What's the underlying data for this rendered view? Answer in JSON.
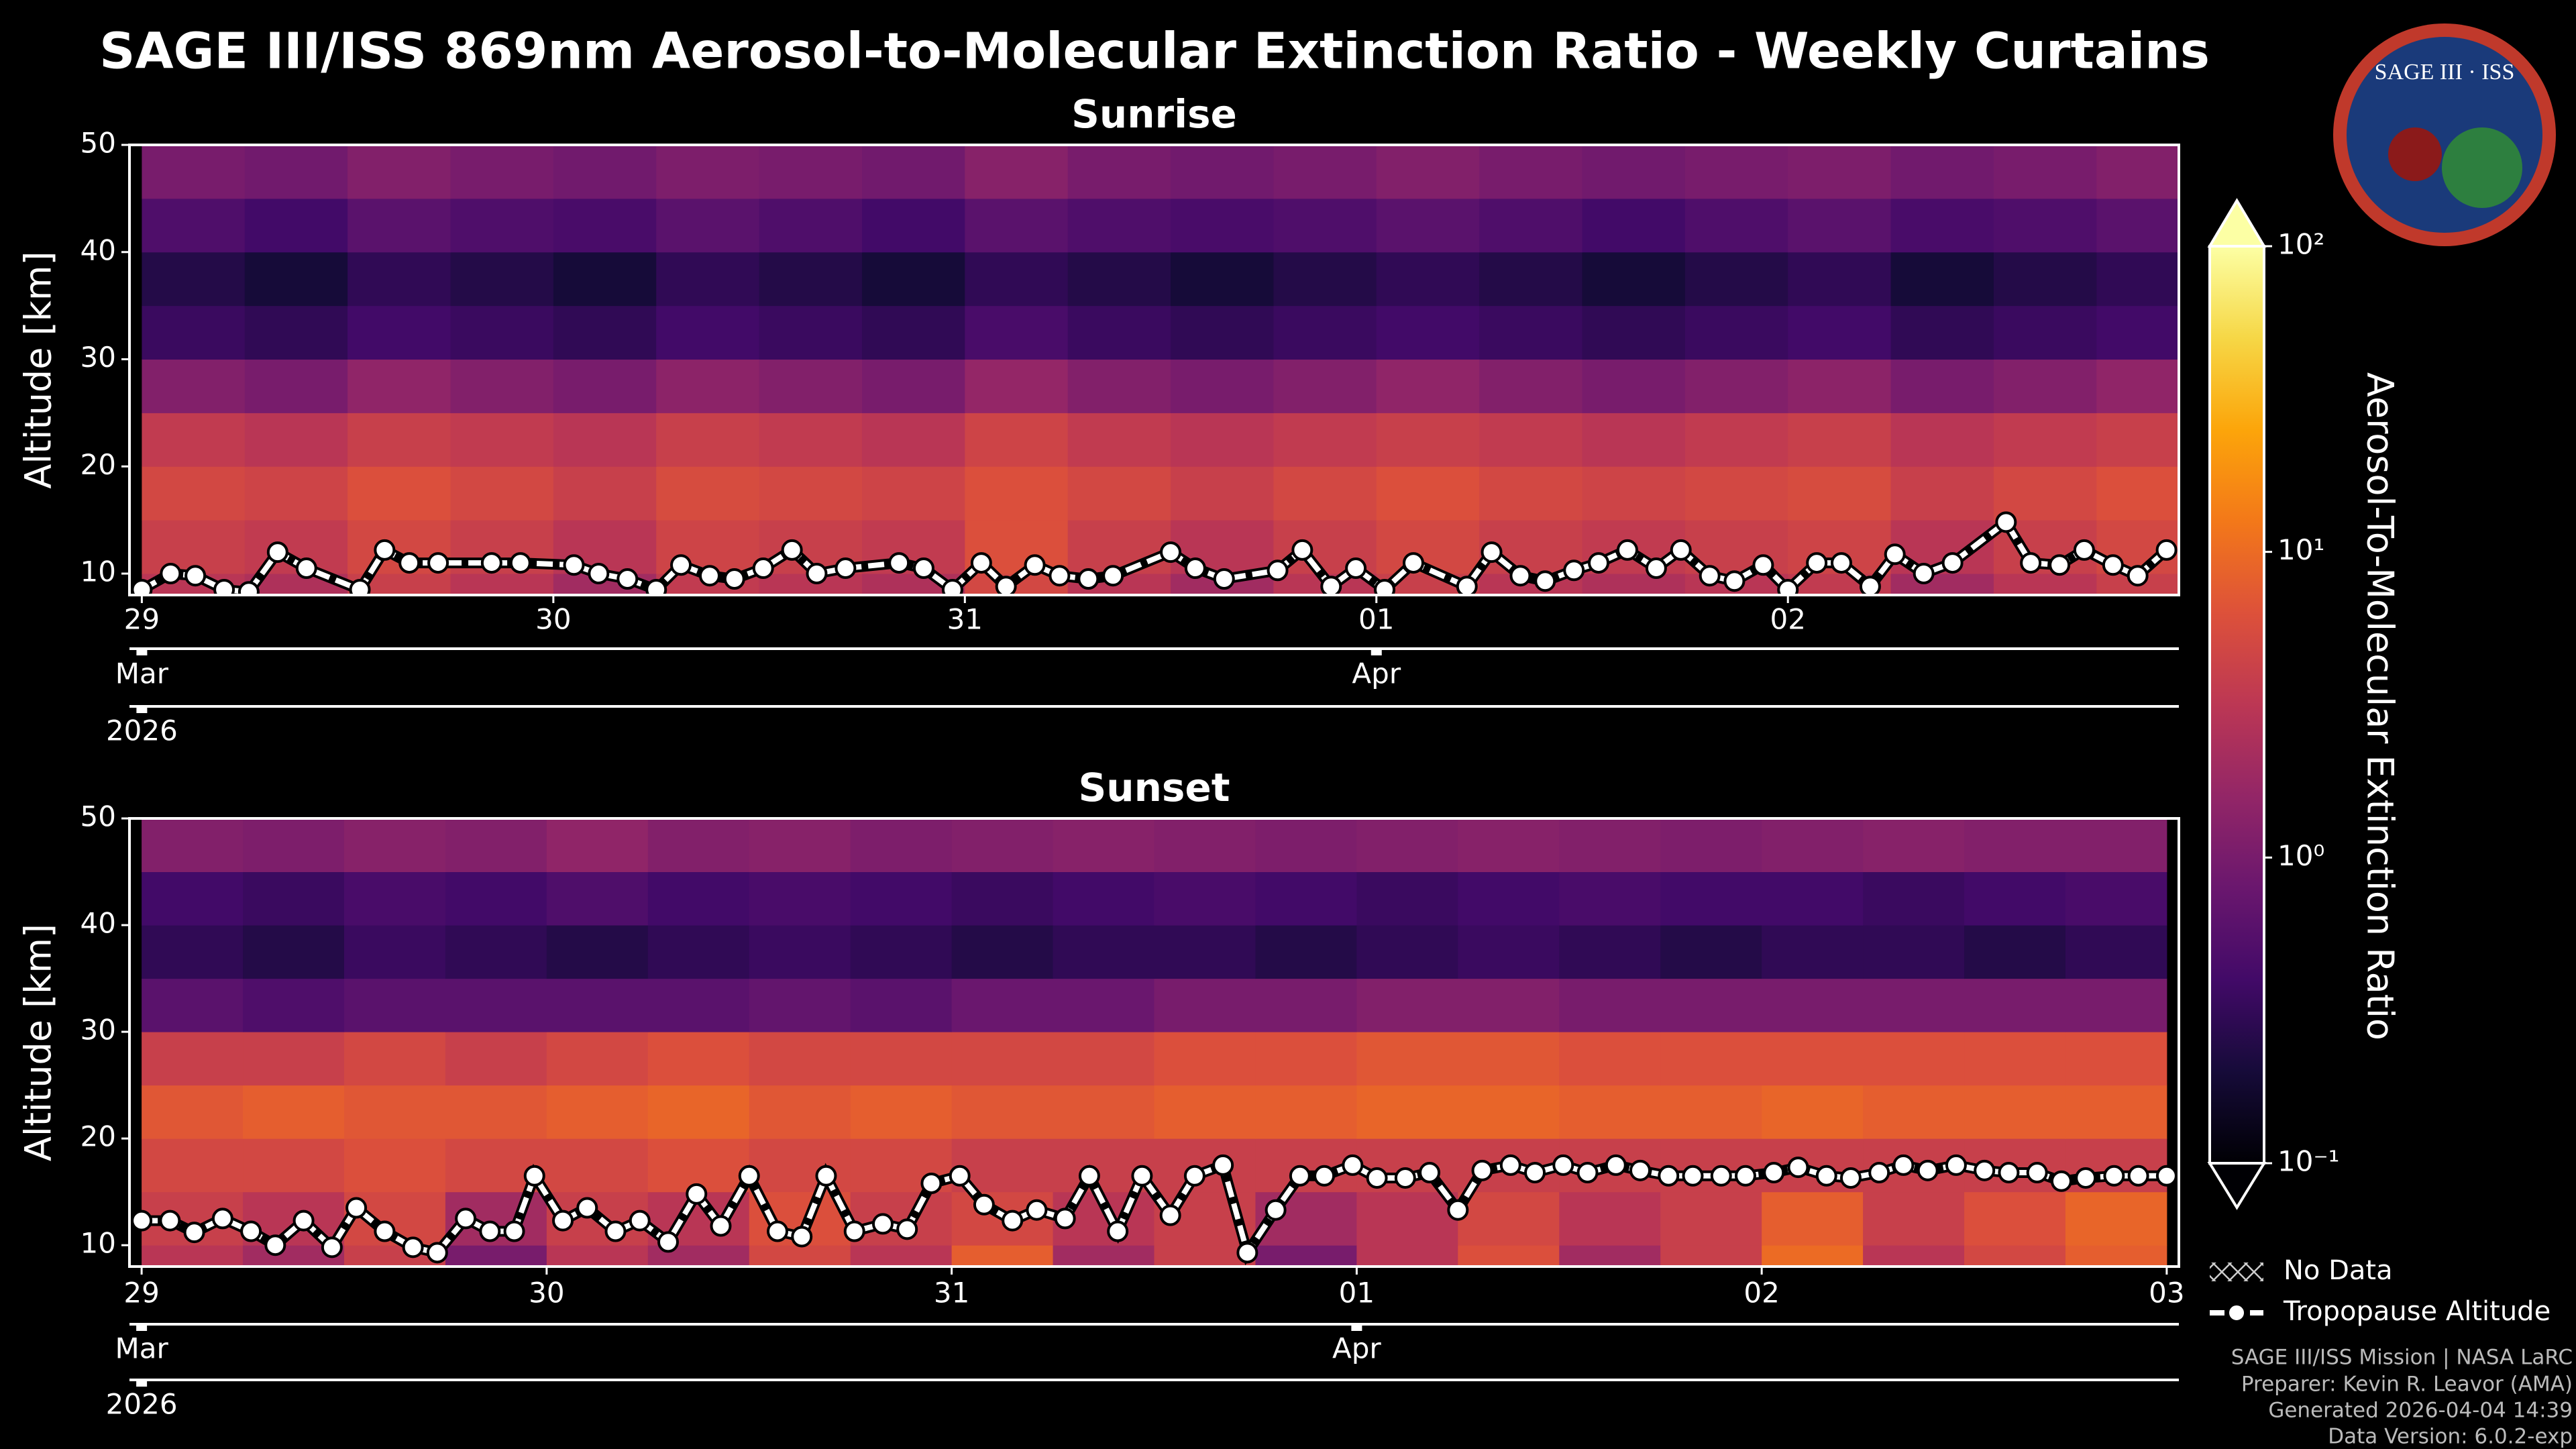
{
  "title": "SAGE III/ISS 869nm Aerosol-to-Molecular Extinction Ratio - Weekly Curtains",
  "logo": {
    "text": "SAGE III · ISS"
  },
  "colorbar": {
    "label": "Aerosol-To-Molecular Extinction Ratio",
    "colormap": "inferno",
    "log": true,
    "clim": [
      0.1,
      100
    ],
    "ticks": [
      {
        "value": 0.1,
        "label": "10⁻¹"
      },
      {
        "value": 1,
        "label": "10⁰"
      },
      {
        "value": 10,
        "label": "10¹"
      },
      {
        "value": 100,
        "label": "10²"
      }
    ]
  },
  "legend": [
    "No Data",
    "Tropopause Altitude"
  ],
  "footer": [
    "SAGE III/ISS Mission | NASA LaRC",
    "Preparer: Kevin R. Leavor (AMA)",
    "Generated 2026-04-04 14:39",
    "Data Version: 6.0.2-exp"
  ],
  "chart_data": [
    {
      "type": "heatmap",
      "title": "Sunrise",
      "ylabel": "Altitude [km]",
      "xlim": [
        -0.03,
        4.95
      ],
      "ylim": [
        8,
        50
      ],
      "yticks": [
        10,
        20,
        30,
        40,
        50
      ],
      "xticks": [
        {
          "value": 0,
          "label": "29"
        },
        {
          "value": 1,
          "label": "30"
        },
        {
          "value": 2,
          "label": "31"
        },
        {
          "value": 3,
          "label": "01"
        },
        {
          "value": 4,
          "label": "02"
        }
      ],
      "month_ticks": [
        {
          "value": 0,
          "label": "Mar"
        },
        {
          "value": 3,
          "label": "Apr"
        }
      ],
      "year_ticks": [
        {
          "value": 0,
          "label": "2026"
        }
      ],
      "x_edges": [
        0,
        0.25,
        0.5,
        0.75,
        1,
        1.25,
        1.5,
        1.75,
        2,
        2.25,
        2.5,
        2.75,
        3,
        3.25,
        3.5,
        3.75,
        4,
        4.25,
        4.5,
        4.75,
        5
      ],
      "y_edges": [
        8,
        10,
        15,
        20,
        25,
        30,
        35,
        40,
        45,
        50
      ],
      "z": [
        [
          3,
          2.5,
          4,
          3,
          2,
          3.5,
          3,
          2.5,
          5,
          3,
          2,
          3,
          4,
          3,
          2.5,
          3,
          3.5,
          2,
          3,
          4
        ],
        [
          4,
          3.5,
          5,
          4,
          3,
          4.5,
          4,
          3.5,
          6,
          4,
          3,
          4,
          5,
          4,
          3.5,
          4,
          4.5,
          3,
          4,
          5
        ],
        [
          5,
          4.5,
          6,
          5,
          4,
          5.5,
          5,
          4.5,
          6,
          5,
          4,
          5,
          6,
          5,
          4.5,
          5,
          5.5,
          4,
          5,
          6
        ],
        [
          3.5,
          3,
          4,
          3.5,
          3,
          4,
          3.5,
          3,
          4.5,
          3.5,
          3,
          3.5,
          4,
          3.5,
          3,
          3.5,
          4,
          3,
          3.5,
          4
        ],
        [
          1.2,
          1,
          1.5,
          1.2,
          1,
          1.4,
          1.2,
          1,
          1.6,
          1.2,
          1,
          1.2,
          1.5,
          1.2,
          1,
          1.2,
          1.4,
          1,
          1.2,
          1.5
        ],
        [
          0.35,
          0.3,
          0.4,
          0.35,
          0.3,
          0.4,
          0.35,
          0.3,
          0.45,
          0.35,
          0.3,
          0.35,
          0.4,
          0.35,
          0.3,
          0.35,
          0.4,
          0.3,
          0.35,
          0.4
        ],
        [
          0.25,
          0.2,
          0.3,
          0.25,
          0.2,
          0.3,
          0.25,
          0.2,
          0.3,
          0.25,
          0.2,
          0.25,
          0.3,
          0.25,
          0.2,
          0.25,
          0.3,
          0.2,
          0.25,
          0.3
        ],
        [
          0.5,
          0.4,
          0.6,
          0.5,
          0.45,
          0.6,
          0.5,
          0.4,
          0.6,
          0.5,
          0.45,
          0.5,
          0.6,
          0.5,
          0.4,
          0.5,
          0.6,
          0.45,
          0.5,
          0.6
        ],
        [
          1,
          0.9,
          1.2,
          1,
          0.9,
          1.1,
          1,
          0.9,
          1.3,
          1,
          0.9,
          1,
          1.2,
          1,
          0.9,
          1,
          1.1,
          0.9,
          1,
          1.2
        ]
      ],
      "series": [
        {
          "color": "#ffffff",
          "x": [
            0,
            0.07,
            0.13,
            0.2,
            0.26,
            0.33,
            0.4,
            0.53,
            0.59,
            0.65,
            0.72,
            0.85,
            0.92,
            1.05,
            1.11,
            1.18,
            1.25,
            1.31,
            1.38,
            1.44,
            1.51,
            1.58,
            1.64,
            1.71,
            1.84,
            1.9,
            1.97,
            2.04,
            2.1,
            2.17,
            2.23,
            2.3,
            2.36,
            2.5,
            2.56,
            2.63,
            2.76,
            2.82,
            2.89,
            2.95,
            3.02,
            3.09,
            3.22,
            3.28,
            3.35,
            3.41,
            3.48,
            3.54,
            3.61,
            3.68,
            3.74,
            3.81,
            3.87,
            3.94,
            4,
            4.07,
            4.13,
            4.2,
            4.26,
            4.33,
            4.4,
            4.53,
            4.59,
            4.66,
            4.72,
            4.79,
            4.85,
            4.92
          ],
          "values": [
            8.5,
            10,
            9.8,
            8.5,
            8.3,
            12,
            10.5,
            8.5,
            12.2,
            11,
            11,
            11,
            11,
            10.8,
            10,
            9.5,
            8.5,
            10.8,
            9.8,
            9.5,
            10.5,
            12.2,
            10,
            10.5,
            11,
            10.5,
            8.5,
            11,
            8.8,
            10.8,
            9.8,
            9.5,
            9.8,
            12,
            10.5,
            9.5,
            10.3,
            12.2,
            8.8,
            10.5,
            8.5,
            11,
            8.8,
            12,
            9.8,
            9.3,
            10.3,
            11,
            12.2,
            10.5,
            12.2,
            9.8,
            9.3,
            10.8,
            8.5,
            11,
            11,
            8.8,
            11.8,
            10,
            11,
            14.8,
            11,
            10.8,
            12.2,
            10.8,
            9.8,
            12.2
          ]
        }
      ]
    },
    {
      "type": "heatmap",
      "title": "Sunset",
      "ylabel": "Altitude [km]",
      "xlim": [
        -0.03,
        5.03
      ],
      "ylim": [
        8,
        50
      ],
      "yticks": [
        10,
        20,
        30,
        40,
        50
      ],
      "xticks": [
        {
          "value": 0,
          "label": "29"
        },
        {
          "value": 1,
          "label": "30"
        },
        {
          "value": 2,
          "label": "31"
        },
        {
          "value": 3,
          "label": "01"
        },
        {
          "value": 4,
          "label": "02"
        },
        {
          "value": 5,
          "label": "03"
        }
      ],
      "month_ticks": [
        {
          "value": 0,
          "label": "Mar"
        },
        {
          "value": 3,
          "label": "Apr"
        }
      ],
      "year_ticks": [
        {
          "value": 0,
          "label": "2026"
        }
      ],
      "x_edges": [
        0,
        0.25,
        0.5,
        0.75,
        1,
        1.25,
        1.5,
        1.75,
        2,
        2.25,
        2.5,
        2.75,
        3,
        3.25,
        3.5,
        3.75,
        4,
        4.25,
        4.5,
        4.75,
        5
      ],
      "y_edges": [
        8,
        10,
        15,
        20,
        25,
        30,
        35,
        40,
        45,
        50
      ],
      "z": [
        [
          3,
          2,
          4,
          1,
          3,
          2,
          5,
          3,
          8,
          2,
          4,
          1,
          3,
          6,
          2,
          4,
          10,
          3,
          5,
          8
        ],
        [
          4,
          3,
          5,
          2,
          4,
          3,
          6,
          4,
          5,
          3,
          4,
          2,
          3,
          5,
          3,
          4,
          8,
          4,
          6,
          9
        ],
        [
          5,
          5,
          6,
          5,
          5,
          6,
          5,
          5,
          4,
          4,
          4,
          4,
          4,
          4,
          4,
          4,
          4,
          4,
          4,
          4
        ],
        [
          7,
          8,
          7,
          7,
          8,
          9,
          7,
          8,
          7,
          7,
          8,
          8,
          9,
          9,
          8,
          8,
          9,
          8,
          8,
          8
        ],
        [
          4,
          4,
          5,
          4,
          5,
          6,
          5,
          5,
          5,
          5,
          6,
          6,
          7,
          7,
          6,
          6,
          6,
          6,
          6,
          6
        ],
        [
          0.6,
          0.5,
          0.6,
          0.6,
          0.6,
          0.6,
          0.7,
          0.6,
          0.8,
          0.8,
          1,
          1,
          1.2,
          1.2,
          1,
          1,
          1,
          1,
          1,
          1
        ],
        [
          0.3,
          0.25,
          0.35,
          0.3,
          0.25,
          0.3,
          0.35,
          0.3,
          0.25,
          0.3,
          0.3,
          0.25,
          0.3,
          0.35,
          0.3,
          0.25,
          0.3,
          0.3,
          0.25,
          0.3
        ],
        [
          0.4,
          0.35,
          0.45,
          0.4,
          0.5,
          0.4,
          0.45,
          0.4,
          0.35,
          0.4,
          0.45,
          0.4,
          0.35,
          0.4,
          0.45,
          0.4,
          0.4,
          0.35,
          0.4,
          0.45
        ],
        [
          1.2,
          1.1,
          1.3,
          1.2,
          1.5,
          1.2,
          1.3,
          1.1,
          1.2,
          1.3,
          1.2,
          1.1,
          1.2,
          1.3,
          1.2,
          1.1,
          1.2,
          1.3,
          1.2,
          1.2
        ]
      ],
      "series": [
        {
          "color": "#ffffff",
          "x": [
            0,
            0.07,
            0.13,
            0.2,
            0.27,
            0.33,
            0.4,
            0.47,
            0.53,
            0.6,
            0.67,
            0.73,
            0.8,
            0.86,
            0.92,
            0.97,
            1.04,
            1.1,
            1.17,
            1.23,
            1.3,
            1.37,
            1.43,
            1.5,
            1.57,
            1.63,
            1.69,
            1.76,
            1.83,
            1.89,
            1.95,
            2.02,
            2.08,
            2.15,
            2.21,
            2.28,
            2.34,
            2.41,
            2.47,
            2.54,
            2.6,
            2.67,
            2.73,
            2.8,
            2.86,
            2.92,
            2.99,
            3.05,
            3.12,
            3.18,
            3.25,
            3.31,
            3.38,
            3.44,
            3.51,
            3.57,
            3.64,
            3.7,
            3.77,
            3.83,
            3.9,
            3.96,
            4.03,
            4.09,
            4.16,
            4.22,
            4.29,
            4.35,
            4.41,
            4.48,
            4.55,
            4.61,
            4.68,
            4.74,
            4.8,
            4.87,
            4.93,
            5
          ],
          "values": [
            12.3,
            12.3,
            11.2,
            12.5,
            11.3,
            10,
            12.3,
            9.8,
            13.5,
            11.3,
            9.8,
            9.3,
            12.5,
            11.3,
            11.3,
            16.5,
            12.3,
            13.5,
            11.3,
            12.3,
            10.3,
            14.8,
            11.8,
            16.5,
            11.3,
            10.8,
            16.5,
            11.3,
            12,
            11.5,
            15.8,
            16.5,
            13.8,
            12.3,
            13.3,
            12.5,
            16.5,
            11.3,
            16.5,
            12.8,
            16.5,
            17.5,
            9.3,
            13.3,
            16.5,
            16.5,
            17.5,
            16.3,
            16.3,
            16.8,
            13.3,
            17,
            17.5,
            16.8,
            17.5,
            16.8,
            17.5,
            17,
            16.5,
            16.5,
            16.5,
            16.5,
            16.8,
            17.3,
            16.5,
            16.3,
            16.8,
            17.5,
            17,
            17.5,
            17,
            16.8,
            16.8,
            16,
            16.3,
            16.5,
            16.5,
            16.5
          ]
        }
      ]
    }
  ]
}
